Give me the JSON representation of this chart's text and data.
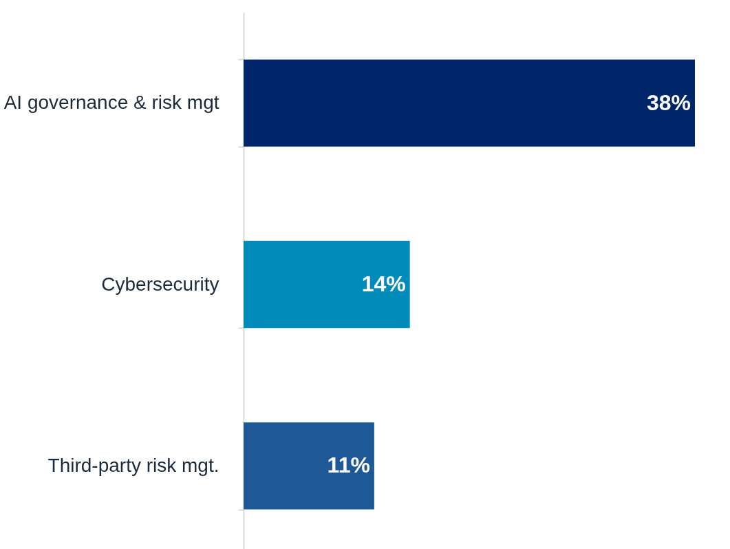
{
  "chart_data": {
    "type": "bar",
    "orientation": "horizontal",
    "categories": [
      "AI governance & risk mgt",
      "Cybersecurity",
      "Third-party risk mgt."
    ],
    "values": [
      38,
      14,
      11
    ],
    "colors": [
      "#00266a",
      "#008bba",
      "#1f5896"
    ],
    "value_labels": [
      "38%",
      "14%",
      "11%"
    ],
    "grid": false,
    "tick_labels": "y"
  }
}
